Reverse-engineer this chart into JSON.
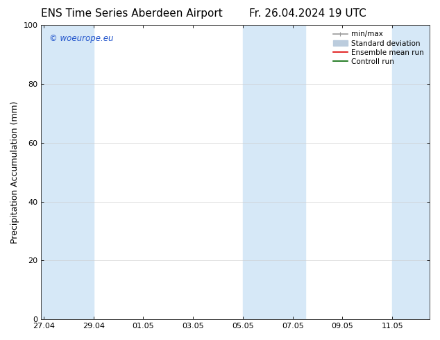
{
  "title_left": "ENS Time Series Aberdeen Airport",
  "title_right": "Fr. 26.04.2024 19 UTC",
  "ylabel": "Precipitation Accumulation (mm)",
  "ylim": [
    0,
    100
  ],
  "yticks": [
    0,
    20,
    40,
    60,
    80,
    100
  ],
  "x_tick_labels": [
    "27.04",
    "29.04",
    "01.05",
    "03.05",
    "05.05",
    "07.05",
    "09.05",
    "11.05"
  ],
  "x_tick_positions": [
    0,
    2,
    4,
    6,
    8,
    10,
    12,
    14
  ],
  "xlim": [
    -0.1,
    15.5
  ],
  "watermark": "© woeurope.eu",
  "watermark_color": "#2255cc",
  "bg_color": "#ffffff",
  "plot_bg_color": "#ffffff",
  "shaded_bands": [
    {
      "x_start": -0.1,
      "x_end": 2.0,
      "color": "#d6e8f7",
      "alpha": 1.0
    },
    {
      "x_start": 8.0,
      "x_end": 10.5,
      "color": "#d6e8f7",
      "alpha": 1.0
    },
    {
      "x_start": 14.0,
      "x_end": 15.5,
      "color": "#d6e8f7",
      "alpha": 1.0
    }
  ],
  "legend_entries": [
    {
      "label": "min/max",
      "color": "#999999",
      "lw": 1.2,
      "style": "line_with_cap"
    },
    {
      "label": "Standard deviation",
      "color": "#bbccdd",
      "lw": 7,
      "style": "thick"
    },
    {
      "label": "Ensemble mean run",
      "color": "#dd0000",
      "lw": 1.2,
      "style": "line"
    },
    {
      "label": "Controll run",
      "color": "#006600",
      "lw": 1.2,
      "style": "line"
    }
  ],
  "title_fontsize": 11,
  "axis_fontsize": 9,
  "tick_fontsize": 8,
  "legend_fontsize": 7.5,
  "grid_color": "#cccccc",
  "grid_alpha": 0.8,
  "spine_color": "#444444"
}
